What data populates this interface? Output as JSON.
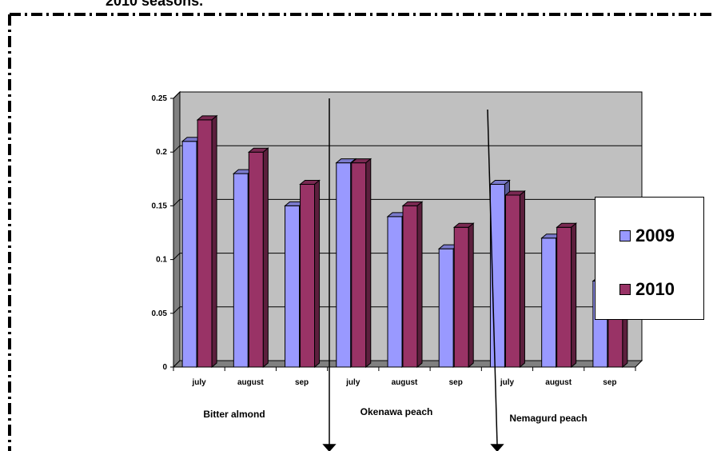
{
  "caption": "2010 seasons.",
  "chart_data": {
    "type": "bar",
    "ylim": [
      0,
      0.25
    ],
    "yticks": [
      "0",
      "0.05",
      "0.1",
      "0.15",
      "0.2",
      "0.25"
    ],
    "grid": true,
    "legend_position": "right",
    "categories": [
      "july",
      "august",
      "sep",
      "july",
      "august",
      "sep",
      "july",
      "august",
      "sep"
    ],
    "groups": [
      "Bitter almond",
      "Okenawa peach",
      "Nemagurd peach"
    ],
    "series": [
      {
        "name": "2009",
        "color": "#9999ff",
        "values": [
          0.21,
          0.18,
          0.15,
          0.19,
          0.14,
          0.11,
          0.17,
          0.12,
          0.08
        ]
      },
      {
        "name": "2010",
        "color": "#993366",
        "values": [
          0.23,
          0.2,
          0.17,
          0.19,
          0.15,
          0.13,
          0.16,
          0.13,
          0.11
        ]
      }
    ]
  },
  "colors": {
    "plot_wall": "#c0c0c0",
    "floor": "#808080",
    "gridline": "#000000"
  }
}
